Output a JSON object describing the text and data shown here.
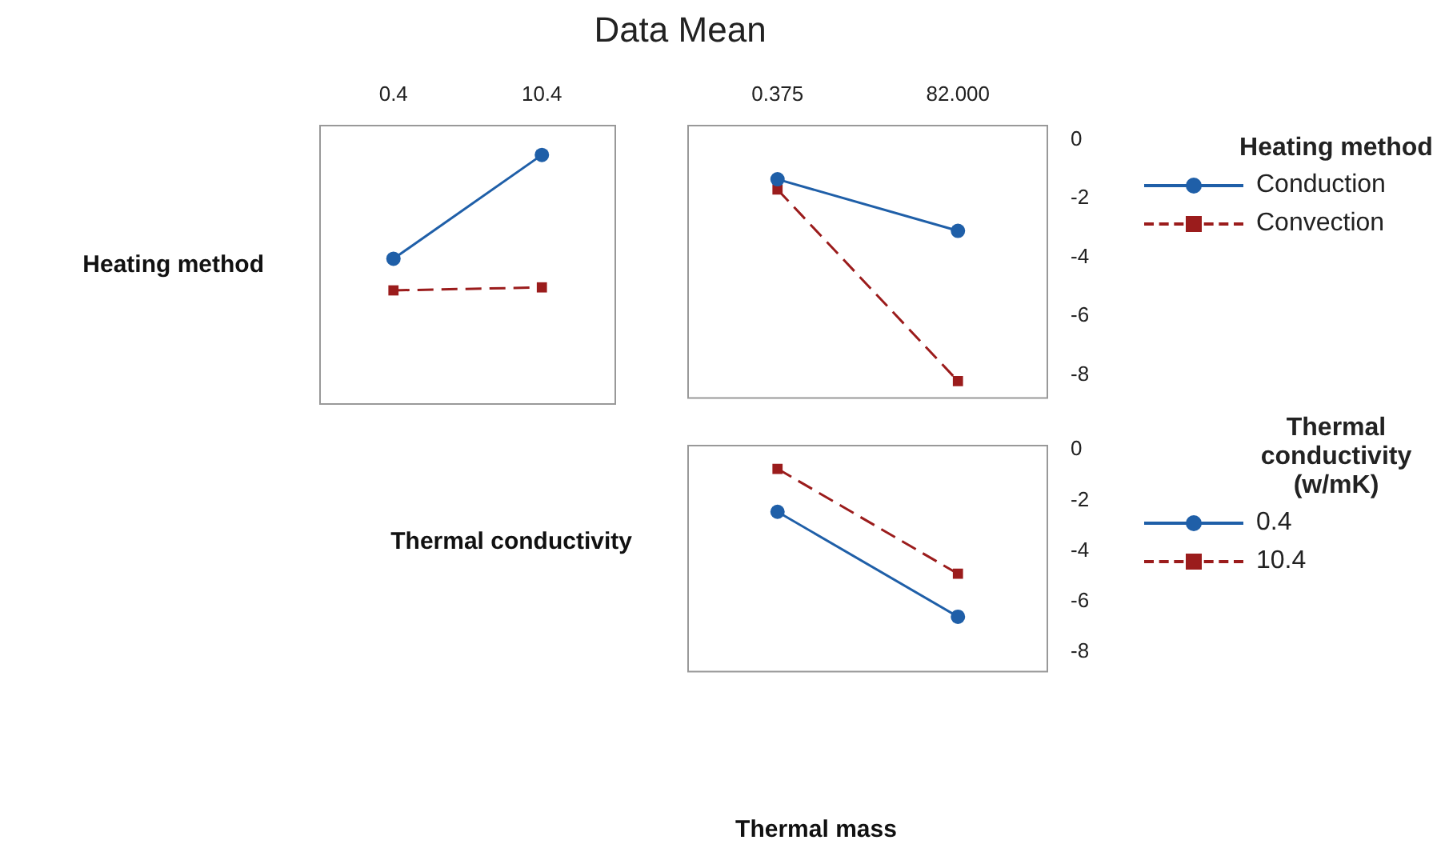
{
  "chart_data": [
    {
      "type": "line",
      "title": "Data Mean",
      "ylabel": "Heating method",
      "categories": [
        "0.4",
        "10.4"
      ],
      "ylim": [
        -8.8,
        0.5
      ],
      "yticks": [
        0,
        -2,
        -4,
        -6,
        -8
      ],
      "tick_labels": "x",
      "grid": false,
      "legend": false,
      "series": [
        {
          "color": "#1f5fa8",
          "values": [
            -3.95,
            -0.5
          ],
          "marker": "circle",
          "line_style": "solid"
        },
        {
          "color": "#9b1c1c",
          "values": [
            -5.0,
            -4.9
          ],
          "marker": "square",
          "line_style": "dashed"
        }
      ]
    },
    {
      "type": "line",
      "categories": [
        "0.375",
        "82.000"
      ],
      "ylim": [
        -8.8,
        0.5
      ],
      "yticks": [
        0,
        -2,
        -4,
        -6,
        -8
      ],
      "grid": false,
      "legend": "right",
      "legend_title": "Heating method",
      "series": [
        {
          "name": "Conduction",
          "color": "#1f5fa8",
          "values": [
            -1.35,
            -3.1
          ],
          "marker": "circle",
          "line_style": "solid"
        },
        {
          "name": "Convection",
          "color": "#9b1c1c",
          "values": [
            -1.7,
            -8.2
          ],
          "marker": "square",
          "line_style": "dashed"
        }
      ]
    },
    {
      "type": "line",
      "ylabel": "Thermal conductivity",
      "xlabel": "Thermal mass",
      "categories": [
        "0.375",
        "82.000"
      ],
      "ylim": [
        -8.8,
        0.2
      ],
      "yticks": [
        0,
        -2,
        -4,
        -6,
        -8
      ],
      "tick_labels": "y",
      "grid": false,
      "legend": "right",
      "legend_title": "Thermal conductivity (w/mK)",
      "series": [
        {
          "name": "0.4",
          "color": "#1f5fa8",
          "values": [
            -2.45,
            -6.6
          ],
          "marker": "circle",
          "line_style": "solid"
        },
        {
          "name": "10.4",
          "color": "#9b1c1c",
          "values": [
            -0.75,
            -4.9
          ],
          "marker": "square",
          "line_style": "dashed"
        }
      ]
    }
  ]
}
